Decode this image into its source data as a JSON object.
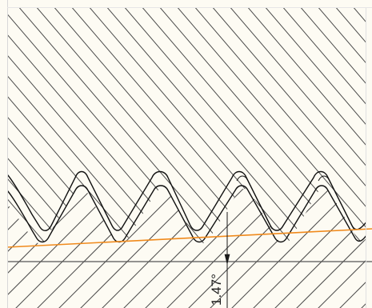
{
  "drawing": {
    "angle_label": "1.47°",
    "colors": {
      "background": "#fdfbf3",
      "hatch": "#4a4a4a",
      "outline": "#111111",
      "reference_line": "#f08a1c",
      "horizontal_line": "#555555",
      "frame_edge": "#d8d8d8"
    }
  }
}
